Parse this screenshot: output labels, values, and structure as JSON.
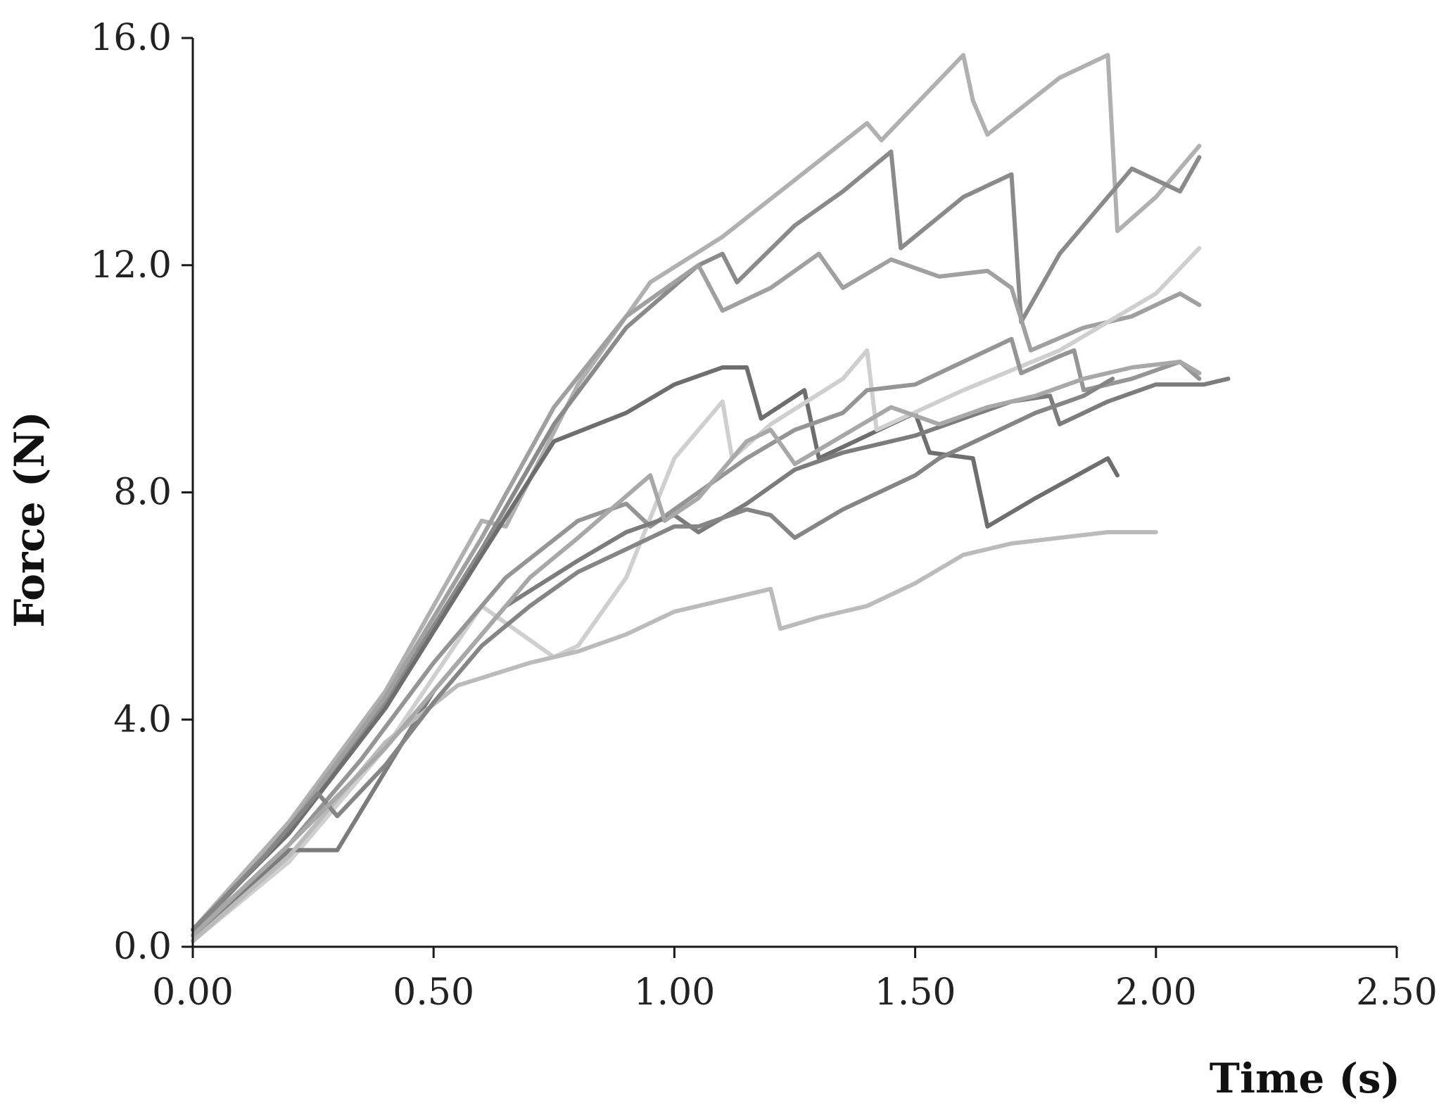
{
  "chart_data": {
    "type": "line",
    "title": "",
    "xlabel": "Time (s)",
    "ylabel": "Force (N)",
    "xlim": [
      0,
      2.5
    ],
    "ylim": [
      0,
      16
    ],
    "x_ticks": [
      0,
      0.5,
      1.0,
      1.5,
      2.0,
      2.5
    ],
    "x_tick_labels": [
      "0.00",
      "0.50",
      "1.00",
      "1.50",
      "2.00",
      "2.50"
    ],
    "y_ticks": [
      0,
      4,
      8,
      12,
      16
    ],
    "y_tick_labels": [
      "0.0",
      "4.0",
      "8.0",
      "12.0",
      "16.0"
    ],
    "grid": false,
    "legend": "none",
    "series": [
      {
        "color": "#b0b0b0",
        "points": [
          [
            0,
            0.3
          ],
          [
            0.2,
            2.2
          ],
          [
            0.4,
            4.5
          ],
          [
            0.6,
            7.5
          ],
          [
            0.65,
            7.4
          ],
          [
            0.8,
            9.9
          ],
          [
            0.95,
            11.7
          ],
          [
            1.1,
            12.5
          ],
          [
            1.25,
            13.5
          ],
          [
            1.4,
            14.5
          ],
          [
            1.43,
            14.2
          ],
          [
            1.6,
            15.7
          ],
          [
            1.62,
            14.9
          ],
          [
            1.65,
            14.3
          ],
          [
            1.8,
            15.3
          ],
          [
            1.9,
            15.7
          ],
          [
            1.92,
            12.6
          ],
          [
            2.0,
            13.2
          ],
          [
            2.09,
            14.1
          ]
        ]
      },
      {
        "color": "#8a8a8a",
        "points": [
          [
            0,
            0.3
          ],
          [
            0.2,
            2.0
          ],
          [
            0.4,
            4.3
          ],
          [
            0.6,
            7.0
          ],
          [
            0.75,
            9.2
          ],
          [
            0.9,
            10.9
          ],
          [
            1.05,
            12.0
          ],
          [
            1.1,
            12.2
          ],
          [
            1.13,
            11.7
          ],
          [
            1.25,
            12.7
          ],
          [
            1.35,
            13.3
          ],
          [
            1.45,
            14.0
          ],
          [
            1.47,
            12.3
          ],
          [
            1.6,
            13.2
          ],
          [
            1.7,
            13.6
          ],
          [
            1.72,
            11.0
          ],
          [
            1.8,
            12.2
          ],
          [
            1.95,
            13.7
          ],
          [
            2.05,
            13.3
          ],
          [
            2.09,
            13.9
          ]
        ]
      },
      {
        "color": "#a0a0a0",
        "points": [
          [
            0,
            0.2
          ],
          [
            0.2,
            2.1
          ],
          [
            0.4,
            4.4
          ],
          [
            0.6,
            7.2
          ],
          [
            0.75,
            9.5
          ],
          [
            0.9,
            11.1
          ],
          [
            1.05,
            12.0
          ],
          [
            1.1,
            11.2
          ],
          [
            1.2,
            11.6
          ],
          [
            1.3,
            12.2
          ],
          [
            1.35,
            11.6
          ],
          [
            1.45,
            12.1
          ],
          [
            1.55,
            11.8
          ],
          [
            1.65,
            11.9
          ],
          [
            1.7,
            11.6
          ],
          [
            1.74,
            10.5
          ],
          [
            1.85,
            10.9
          ],
          [
            1.95,
            11.1
          ],
          [
            2.05,
            11.5
          ],
          [
            2.09,
            11.3
          ]
        ]
      },
      {
        "color": "#6e6e6e",
        "points": [
          [
            0,
            0.3
          ],
          [
            0.2,
            2.0
          ],
          [
            0.4,
            4.2
          ],
          [
            0.6,
            6.9
          ],
          [
            0.75,
            8.9
          ],
          [
            0.9,
            9.4
          ],
          [
            1.0,
            9.9
          ],
          [
            1.1,
            10.2
          ],
          [
            1.15,
            10.2
          ],
          [
            1.18,
            9.3
          ],
          [
            1.27,
            9.8
          ],
          [
            1.3,
            8.6
          ],
          [
            1.4,
            9.0
          ],
          [
            1.5,
            9.4
          ],
          [
            1.53,
            8.7
          ],
          [
            1.62,
            8.6
          ],
          [
            1.65,
            7.4
          ],
          [
            1.75,
            7.9
          ],
          [
            1.9,
            8.6
          ],
          [
            1.92,
            8.3
          ]
        ]
      },
      {
        "color": "#cfcfcf",
        "points": [
          [
            0,
            0.1
          ],
          [
            0.2,
            1.5
          ],
          [
            0.4,
            3.5
          ],
          [
            0.6,
            6.0
          ],
          [
            0.75,
            5.1
          ],
          [
            0.8,
            5.3
          ],
          [
            0.9,
            6.5
          ],
          [
            1.0,
            8.6
          ],
          [
            1.1,
            9.6
          ],
          [
            1.12,
            8.6
          ],
          [
            1.2,
            9.2
          ],
          [
            1.35,
            10.0
          ],
          [
            1.4,
            10.5
          ],
          [
            1.42,
            9.1
          ],
          [
            1.6,
            9.8
          ],
          [
            1.8,
            10.5
          ],
          [
            2.0,
            11.5
          ],
          [
            2.09,
            12.3
          ]
        ]
      },
      {
        "color": "#959595",
        "points": [
          [
            0,
            0.2
          ],
          [
            0.2,
            1.8
          ],
          [
            0.35,
            3.3
          ],
          [
            0.5,
            5.0
          ],
          [
            0.65,
            6.5
          ],
          [
            0.8,
            7.5
          ],
          [
            0.9,
            7.8
          ],
          [
            0.95,
            7.4
          ],
          [
            1.05,
            8.0
          ],
          [
            1.15,
            8.6
          ],
          [
            1.25,
            9.1
          ],
          [
            1.35,
            9.4
          ],
          [
            1.4,
            9.8
          ],
          [
            1.5,
            9.9
          ],
          [
            1.6,
            10.3
          ],
          [
            1.7,
            10.7
          ],
          [
            1.72,
            10.1
          ],
          [
            1.8,
            10.4
          ],
          [
            1.83,
            10.5
          ],
          [
            1.85,
            9.8
          ],
          [
            1.95,
            10.0
          ],
          [
            2.05,
            10.3
          ],
          [
            2.09,
            10.0
          ]
        ]
      },
      {
        "color": "#7c7c7c",
        "points": [
          [
            0,
            0.1
          ],
          [
            0.2,
            1.7
          ],
          [
            0.3,
            1.7
          ],
          [
            0.4,
            3.1
          ],
          [
            0.5,
            4.5
          ],
          [
            0.65,
            6.0
          ],
          [
            0.8,
            6.8
          ],
          [
            0.9,
            7.3
          ],
          [
            1.0,
            7.6
          ],
          [
            1.05,
            7.3
          ],
          [
            1.15,
            7.8
          ],
          [
            1.25,
            8.4
          ],
          [
            1.35,
            8.7
          ],
          [
            1.45,
            8.9
          ],
          [
            1.5,
            9.0
          ],
          [
            1.6,
            9.3
          ],
          [
            1.7,
            9.6
          ],
          [
            1.78,
            9.7
          ],
          [
            1.8,
            9.2
          ],
          [
            1.9,
            9.6
          ],
          [
            2.0,
            9.9
          ],
          [
            2.1,
            9.9
          ],
          [
            2.15,
            10.0
          ]
        ]
      },
      {
        "color": "#bbbbbb",
        "points": [
          [
            0,
            0.1
          ],
          [
            0.2,
            1.6
          ],
          [
            0.4,
            3.6
          ],
          [
            0.55,
            4.6
          ],
          [
            0.7,
            5.0
          ],
          [
            0.8,
            5.2
          ],
          [
            0.9,
            5.5
          ],
          [
            1.0,
            5.9
          ],
          [
            1.1,
            6.1
          ],
          [
            1.2,
            6.3
          ],
          [
            1.22,
            5.6
          ],
          [
            1.3,
            5.8
          ],
          [
            1.4,
            6.0
          ],
          [
            1.5,
            6.4
          ],
          [
            1.6,
            6.9
          ],
          [
            1.7,
            7.1
          ],
          [
            1.8,
            7.2
          ],
          [
            1.9,
            7.3
          ],
          [
            2.0,
            7.3
          ]
        ]
      },
      {
        "color": "#858585",
        "points": [
          [
            0,
            0.3
          ],
          [
            0.15,
            1.6
          ],
          [
            0.26,
            2.7
          ],
          [
            0.3,
            2.3
          ],
          [
            0.4,
            3.2
          ],
          [
            0.5,
            4.3
          ],
          [
            0.6,
            5.3
          ],
          [
            0.7,
            6.0
          ],
          [
            0.8,
            6.6
          ],
          [
            0.9,
            7.0
          ],
          [
            1.0,
            7.4
          ],
          [
            1.05,
            7.4
          ],
          [
            1.15,
            7.7
          ],
          [
            1.2,
            7.6
          ],
          [
            1.25,
            7.2
          ],
          [
            1.35,
            7.7
          ],
          [
            1.45,
            8.1
          ],
          [
            1.5,
            8.3
          ],
          [
            1.55,
            8.6
          ],
          [
            1.65,
            9.0
          ],
          [
            1.75,
            9.4
          ],
          [
            1.85,
            9.7
          ],
          [
            1.91,
            10.0
          ]
        ]
      },
      {
        "color": "#a8a8a8",
        "points": [
          [
            0,
            0.2
          ],
          [
            0.2,
            1.8
          ],
          [
            0.4,
            3.5
          ],
          [
            0.5,
            4.5
          ],
          [
            0.6,
            5.5
          ],
          [
            0.7,
            6.5
          ],
          [
            0.8,
            7.2
          ],
          [
            0.95,
            8.3
          ],
          [
            0.98,
            7.5
          ],
          [
            1.05,
            7.9
          ],
          [
            1.15,
            8.9
          ],
          [
            1.2,
            9.1
          ],
          [
            1.25,
            8.5
          ],
          [
            1.35,
            9.0
          ],
          [
            1.45,
            9.5
          ],
          [
            1.55,
            9.2
          ],
          [
            1.65,
            9.5
          ],
          [
            1.75,
            9.7
          ],
          [
            1.85,
            10.0
          ],
          [
            1.95,
            10.2
          ],
          [
            2.05,
            10.3
          ],
          [
            2.09,
            10.1
          ]
        ]
      }
    ]
  }
}
